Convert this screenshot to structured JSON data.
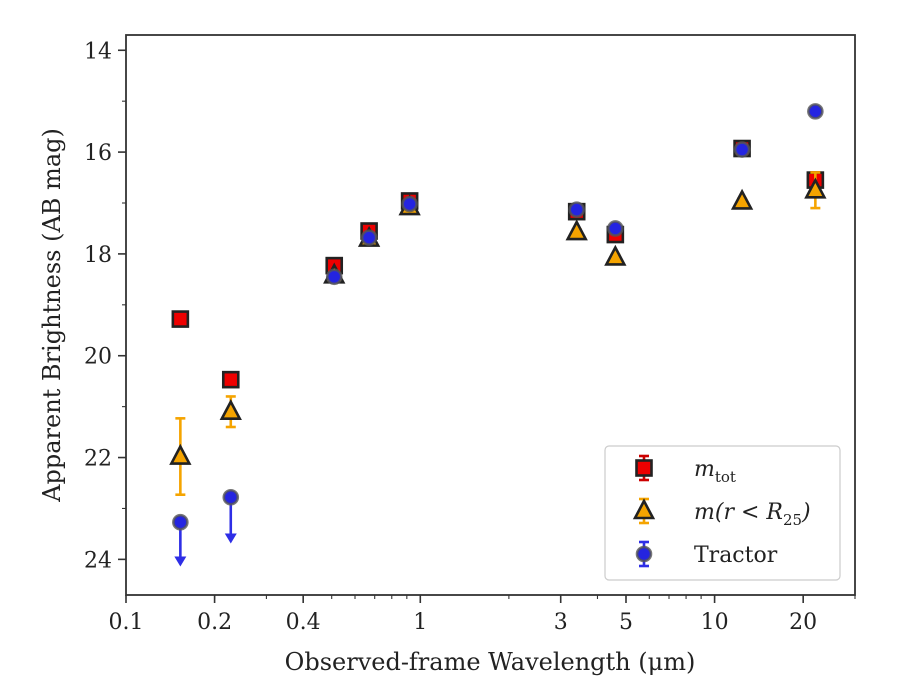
{
  "chart_data": {
    "type": "scatter",
    "xlabel": "Observed-frame Wavelength (μm)",
    "ylabel": "Apparent Brightness (AB mag)",
    "xscale": "log",
    "xlim": [
      0.1,
      30
    ],
    "ylim": [
      24.7,
      13.7
    ],
    "y_inverted": true,
    "x_ticks": [
      {
        "value": 0.1,
        "label": "0.1"
      },
      {
        "value": 0.2,
        "label": "0.2"
      },
      {
        "value": 0.4,
        "label": "0.4"
      },
      {
        "value": 1,
        "label": "1"
      },
      {
        "value": 3,
        "label": "3"
      },
      {
        "value": 5,
        "label": "5"
      },
      {
        "value": 10,
        "label": "10"
      },
      {
        "value": 20,
        "label": "20"
      }
    ],
    "y_ticks": [
      {
        "value": 14,
        "label": "14"
      },
      {
        "value": 16,
        "label": "16"
      },
      {
        "value": 18,
        "label": "18"
      },
      {
        "value": 20,
        "label": "20"
      },
      {
        "value": 22,
        "label": "22"
      },
      {
        "value": 24,
        "label": "24"
      }
    ],
    "grid": false,
    "legend_position": "lower-right",
    "series": [
      {
        "name": "m_tot",
        "marker": "square",
        "color": "#ee0000",
        "edge_color": "#222222",
        "error_color": "#cc0000",
        "points": [
          {
            "x": 0.153,
            "y": 19.28,
            "err": 0.05
          },
          {
            "x": 0.227,
            "y": 20.47,
            "err": 0.05
          },
          {
            "x": 0.51,
            "y": 18.23,
            "err": 0.05
          },
          {
            "x": 0.67,
            "y": 17.55,
            "err": 0.05
          },
          {
            "x": 0.92,
            "y": 16.96,
            "err": 0.05
          },
          {
            "x": 3.4,
            "y": 17.17,
            "err": 0.05
          },
          {
            "x": 4.6,
            "y": 17.62,
            "err": 0.05
          },
          {
            "x": 12.4,
            "y": 15.93,
            "err": 0.05
          },
          {
            "x": 22.0,
            "y": 16.55,
            "err": 0.15
          }
        ]
      },
      {
        "name": "m(r < R_25)",
        "marker": "triangle",
        "color": "#f5a400",
        "edge_color": "#222222",
        "error_color": "#f5a400",
        "points": [
          {
            "x": 0.153,
            "y": 21.98,
            "err": 0.75
          },
          {
            "x": 0.227,
            "y": 21.1,
            "err": 0.3
          },
          {
            "x": 0.51,
            "y": 18.42,
            "err": 0.05
          },
          {
            "x": 0.67,
            "y": 17.7,
            "err": 0.05
          },
          {
            "x": 0.92,
            "y": 17.08,
            "err": 0.05
          },
          {
            "x": 3.4,
            "y": 17.57,
            "err": 0.05
          },
          {
            "x": 4.6,
            "y": 18.07,
            "err": 0.05
          },
          {
            "x": 12.4,
            "y": 16.97,
            "err": 0.05
          },
          {
            "x": 22.0,
            "y": 16.75,
            "err": 0.35
          }
        ]
      },
      {
        "name": "Tractor",
        "marker": "circle",
        "color": "#2424e0",
        "edge_color": "#555555",
        "error_color": "#2e2ee6",
        "points": [
          {
            "x": 0.153,
            "y": 23.27,
            "upper_limit": true,
            "arrow_to": 24.1
          },
          {
            "x": 0.227,
            "y": 22.78,
            "upper_limit": true,
            "arrow_to": 23.65
          },
          {
            "x": 0.51,
            "y": 18.45,
            "err": 0.05
          },
          {
            "x": 0.67,
            "y": 17.68,
            "err": 0.05
          },
          {
            "x": 0.92,
            "y": 17.02,
            "err": 0.05
          },
          {
            "x": 3.4,
            "y": 17.13,
            "err": 0.05
          },
          {
            "x": 4.6,
            "y": 17.5,
            "err": 0.05
          },
          {
            "x": 12.4,
            "y": 15.95,
            "err": 0.05
          },
          {
            "x": 22.0,
            "y": 15.2,
            "err": 0.05
          }
        ]
      }
    ],
    "legend": [
      {
        "series": 0,
        "label_main": "m",
        "label_sub": "tot",
        "label_rest": ""
      },
      {
        "series": 1,
        "label_main": "m(r < R",
        "label_sub": "25",
        "label_rest": ")"
      },
      {
        "series": 2,
        "label_main": "Tractor",
        "label_sub": "",
        "label_rest": ""
      }
    ]
  }
}
